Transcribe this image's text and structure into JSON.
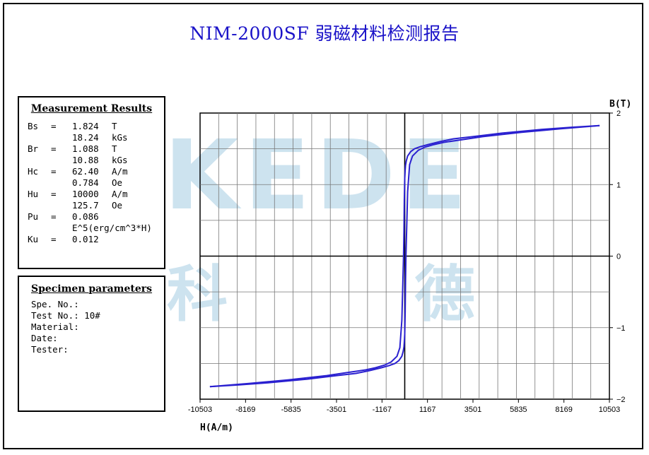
{
  "title": "NIM-2000SF   弱磁材料检测报告",
  "watermark": {
    "text": "KEDE",
    "char1": "科",
    "char2": "德"
  },
  "measurement": {
    "heading": "Measurement Results",
    "rows": [
      {
        "name": "Bs",
        "eq": "=",
        "value": "1.824",
        "unit": "T"
      },
      {
        "name": "",
        "eq": "",
        "value": "18.24",
        "unit": "kGs"
      },
      {
        "name": "Br",
        "eq": "=",
        "value": "1.088",
        "unit": "T"
      },
      {
        "name": "",
        "eq": "",
        "value": "10.88",
        "unit": "kGs"
      },
      {
        "name": "Hc",
        "eq": "=",
        "value": "62.40",
        "unit": "A/m"
      },
      {
        "name": "",
        "eq": "",
        "value": "0.784",
        "unit": "Oe"
      },
      {
        "name": "Hu",
        "eq": "=",
        "value": "10000",
        "unit": "A/m"
      },
      {
        "name": "",
        "eq": "",
        "value": "125.7",
        "unit": "Oe"
      },
      {
        "name": "Pu",
        "eq": "=",
        "value": "0.086",
        "unit": ""
      },
      {
        "name": "",
        "eq": "",
        "value": "E^5(erg/cm^3*H)",
        "unit": ""
      },
      {
        "name": "Ku",
        "eq": "=",
        "value": "0.012",
        "unit": ""
      }
    ]
  },
  "specimen": {
    "heading": "Specimen parameters",
    "lines": [
      "Spe. No.:",
      "Test No.: 10#",
      "Material:",
      "Date:",
      "Tester:"
    ]
  },
  "chart_data": {
    "type": "line",
    "xlabel": "H(A/m)",
    "ylabel": "B(T)",
    "xlim": [
      -10503,
      10503
    ],
    "ylim": [
      -2,
      2
    ],
    "xticks": [
      -10503,
      -8169,
      -5835,
      -3501,
      -1167,
      1167,
      3501,
      5835,
      8169,
      10503
    ],
    "yticks": [
      2,
      1,
      0,
      -1,
      -2
    ],
    "ytick_labels": [
      "2",
      "1",
      "0",
      "−1",
      "−2"
    ],
    "grid": true,
    "color": "#2a20d0",
    "series": [
      {
        "x": [
          -10000,
          -8000,
          -6000,
          -4000,
          -3000,
          -2000,
          -1500,
          -1000,
          -700,
          -400,
          -250,
          -150,
          -90,
          -62,
          -40,
          -20,
          0,
          20,
          40,
          80,
          150,
          300,
          500,
          800,
          1200,
          1800,
          2500,
          3500,
          5000,
          7000,
          8500,
          10000
        ],
        "y": [
          -1.824,
          -1.78,
          -1.73,
          -1.67,
          -1.63,
          -1.59,
          -1.56,
          -1.52,
          -1.48,
          -1.4,
          -1.28,
          -0.9,
          -0.3,
          0,
          0.35,
          0.78,
          1.088,
          1.2,
          1.27,
          1.33,
          1.4,
          1.46,
          1.5,
          1.53,
          1.56,
          1.6,
          1.64,
          1.67,
          1.72,
          1.77,
          1.8,
          1.824
        ]
      },
      {
        "x": [
          10000,
          8000,
          6000,
          4000,
          3000,
          2000,
          1500,
          1000,
          700,
          400,
          250,
          150,
          90,
          62,
          40,
          20,
          0,
          -20,
          -40,
          -80,
          -150,
          -300,
          -500,
          -800,
          -1200,
          -1800,
          -2500,
          -3500,
          -5000,
          -7000,
          -8500,
          -10000
        ],
        "y": [
          1.824,
          1.78,
          1.73,
          1.67,
          1.63,
          1.59,
          1.56,
          1.52,
          1.48,
          1.4,
          1.28,
          0.9,
          0.3,
          0,
          -0.35,
          -0.78,
          -1.088,
          -1.2,
          -1.27,
          -1.33,
          -1.4,
          -1.46,
          -1.5,
          -1.53,
          -1.56,
          -1.6,
          -1.64,
          -1.67,
          -1.72,
          -1.77,
          -1.8,
          -1.824
        ]
      }
    ]
  }
}
